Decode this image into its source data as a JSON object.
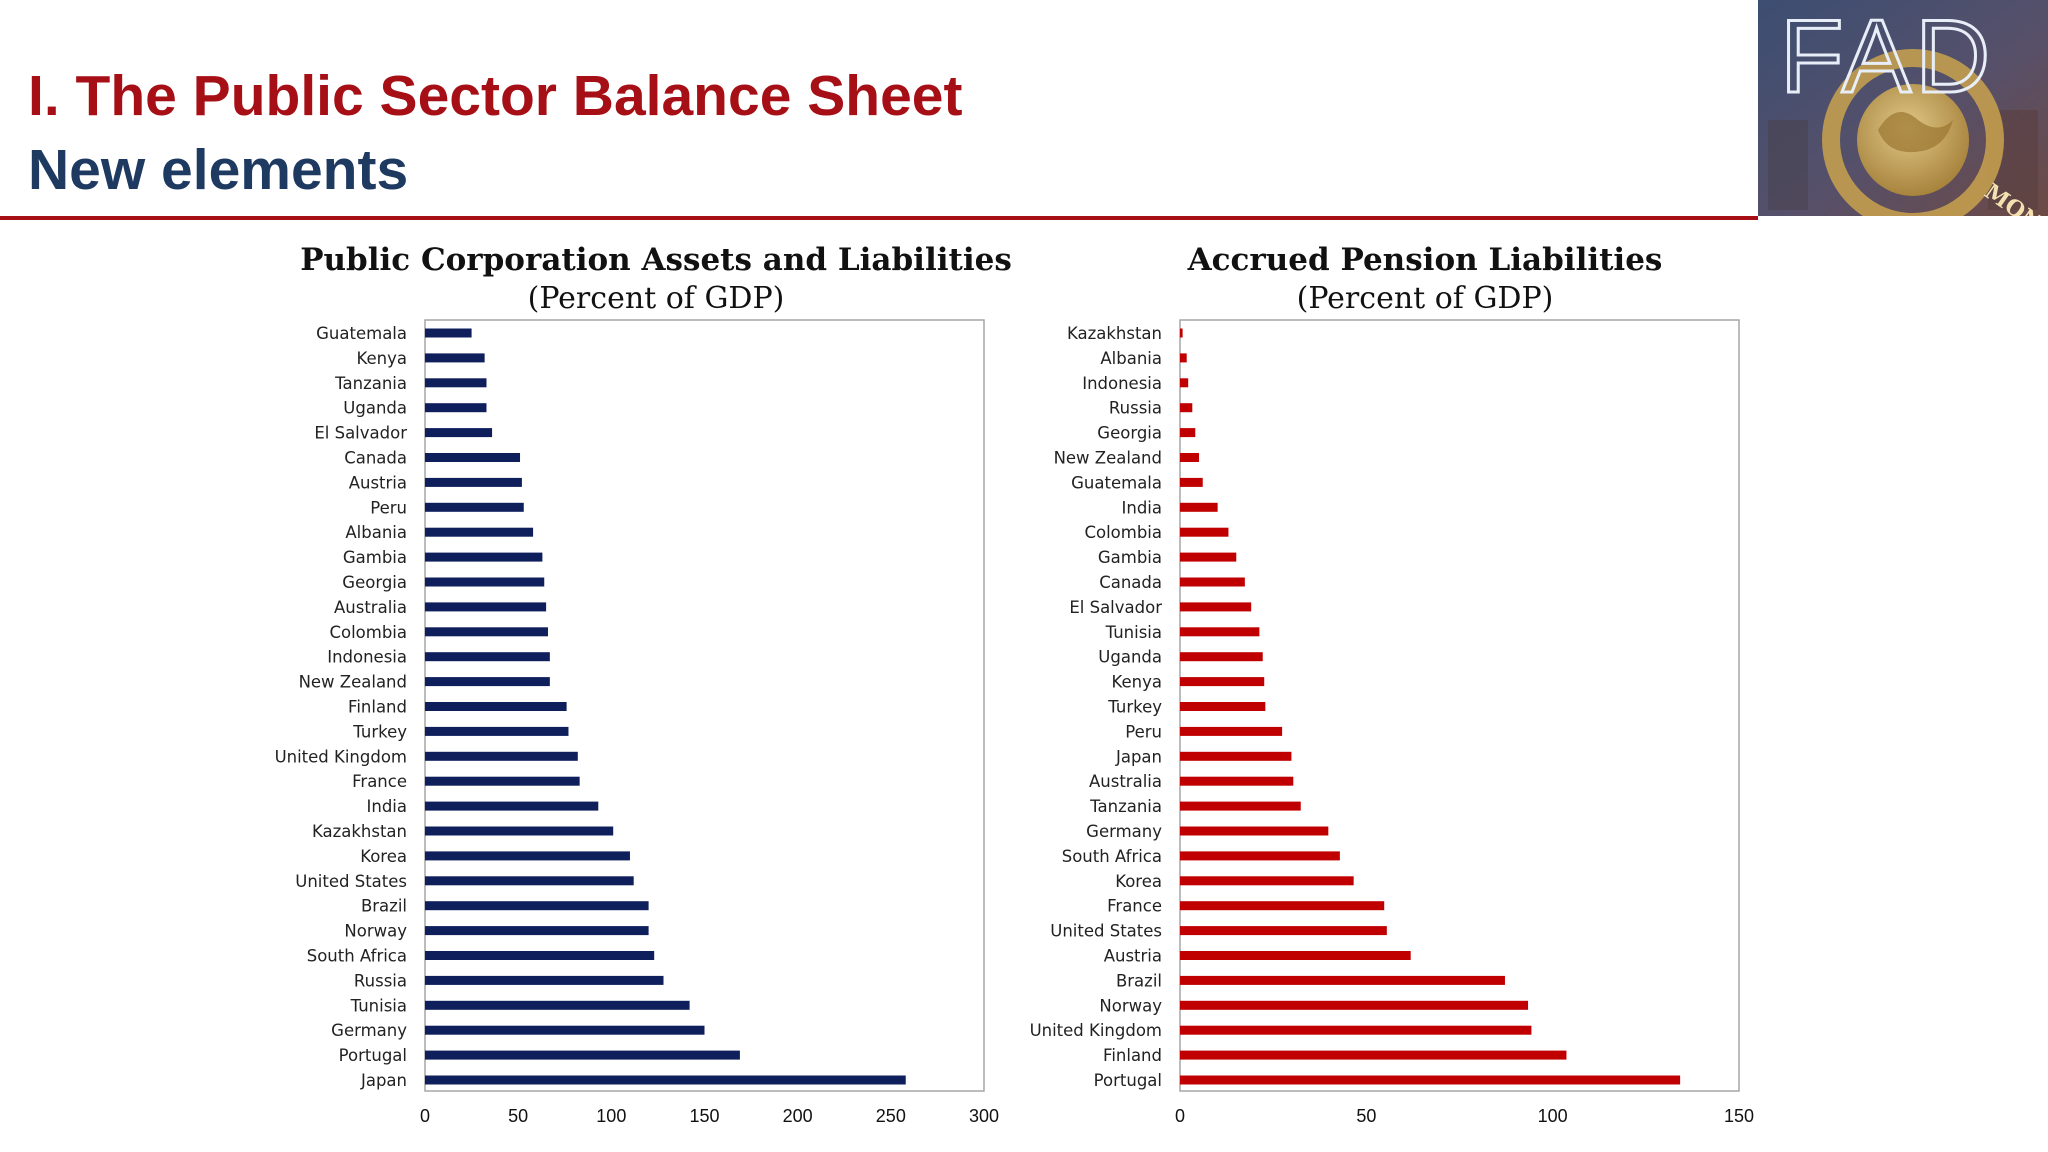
{
  "header": {
    "title": "I. The Public Sector Balance Sheet",
    "subtitle": "New elements",
    "logo_text": "FAD",
    "logo_seal_text": "MONETARY FUND",
    "accent_color": "#a50f15",
    "subtitle_color": "#1f3a60"
  },
  "chart_data": [
    {
      "type": "bar",
      "orientation": "horizontal",
      "title": "Public Corporation Assets and Liabilities",
      "subtitle": "(Percent of GDP)",
      "color": "#0e1f5b",
      "xlim": [
        0,
        300
      ],
      "xticks": [
        0,
        50,
        100,
        150,
        200,
        250,
        300
      ],
      "categories": [
        "Guatemala",
        "Kenya",
        "Tanzania",
        "Uganda",
        "El Salvador",
        "Canada",
        "Austria",
        "Peru",
        "Albania",
        "Gambia",
        "Georgia",
        "Australia",
        "Colombia",
        "Indonesia",
        "New Zealand",
        "Finland",
        "Turkey",
        "United Kingdom",
        "France",
        "India",
        "Kazakhstan",
        "Korea",
        "United States",
        "Brazil",
        "Norway",
        "South Africa",
        "Russia",
        "Tunisia",
        "Germany",
        "Portugal",
        "Japan"
      ],
      "values": [
        25,
        32,
        33,
        33,
        36,
        51,
        52,
        53,
        58,
        63,
        64,
        65,
        66,
        67,
        67,
        76,
        77,
        82,
        83,
        93,
        101,
        110,
        112,
        120,
        120,
        123,
        128,
        142,
        150,
        169,
        258
      ],
      "grid": false
    },
    {
      "type": "bar",
      "orientation": "horizontal",
      "title": "Accrued Pension Liabilities",
      "subtitle": "(Percent of GDP)",
      "color": "#c00000",
      "xlim": [
        0,
        150
      ],
      "xticks": [
        0,
        50,
        100,
        150
      ],
      "categories": [
        "Kazakhstan",
        "Albania",
        "Indonesia",
        "Russia",
        "Georgia",
        "New Zealand",
        "Guatemala",
        "India",
        "Colombia",
        "Gambia",
        "Canada",
        "El Salvador",
        "Tunisia",
        "Uganda",
        "Kenya",
        "Turkey",
        "Peru",
        "Japan",
        "Australia",
        "Tanzania",
        "Germany",
        "South Africa",
        "Korea",
        "France",
        "United States",
        "Austria",
        "Brazil",
        "Norway",
        "United Kingdom",
        "Finland",
        "Portugal"
      ],
      "values": [
        0.7,
        1.8,
        2.2,
        3.3,
        4.1,
        5.1,
        6.1,
        10.1,
        13.0,
        15.1,
        17.4,
        19.1,
        21.3,
        22.2,
        22.6,
        22.9,
        27.4,
        29.9,
        30.4,
        32.4,
        39.8,
        42.9,
        46.6,
        54.8,
        55.5,
        61.9,
        87.2,
        93.4,
        94.3,
        103.7,
        134.2
      ],
      "grid": false
    }
  ]
}
